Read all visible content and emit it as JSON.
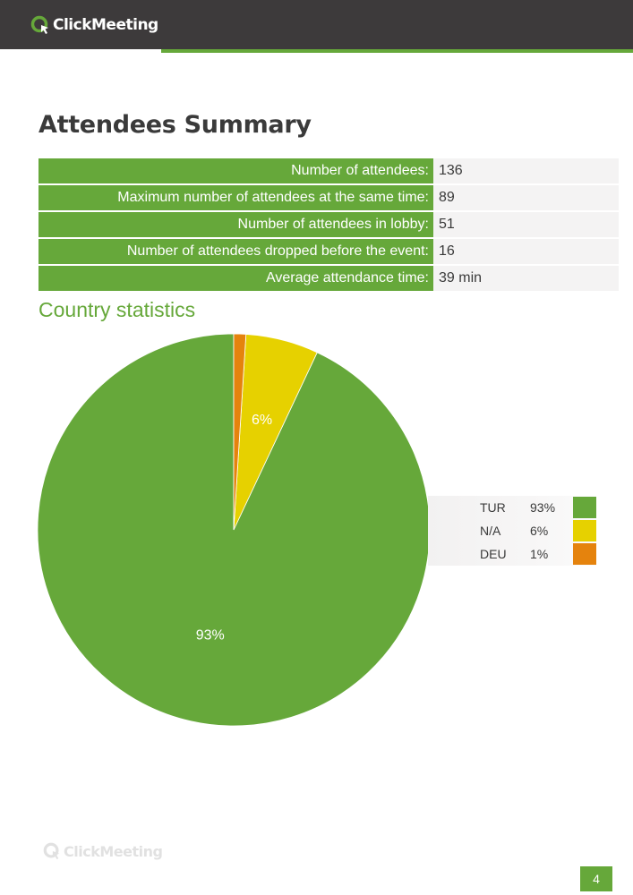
{
  "brand": {
    "name": "ClickMeeting"
  },
  "colors": {
    "header": "#3d3a3b",
    "accent": "#66a83a",
    "tur": "#66a83a",
    "na": "#e6d100",
    "deu": "#e5830d"
  },
  "page_title": "Attendees Summary",
  "summary": [
    {
      "label": "Number of attendees:",
      "value": "136"
    },
    {
      "label": "Maximum number of attendees at the same time:",
      "value": "89"
    },
    {
      "label": "Number of attendees in lobby:",
      "value": "51"
    },
    {
      "label": "Number of attendees dropped before the event:",
      "value": "16"
    },
    {
      "label": "Average attendance time:",
      "value": "39 min"
    }
  ],
  "section_title": "Country statistics",
  "chart_data": {
    "type": "pie",
    "categories": [
      "TUR",
      "N/A",
      "DEU"
    ],
    "values": [
      93,
      6,
      1
    ],
    "slice_labels": [
      "93%",
      "6%",
      ""
    ],
    "colors": [
      "#66a83a",
      "#e6d100",
      "#e5830d"
    ],
    "start": "12 o'clock",
    "direction": "counter-clockwise",
    "legend_position": "right",
    "legend": [
      {
        "code": "TUR",
        "pct": "93%",
        "color": "#66a83a"
      },
      {
        "code": "N/A",
        "pct": "6%",
        "color": "#e6d100"
      },
      {
        "code": "DEU",
        "pct": "1%",
        "color": "#e5830d"
      }
    ]
  },
  "page_number": "4"
}
